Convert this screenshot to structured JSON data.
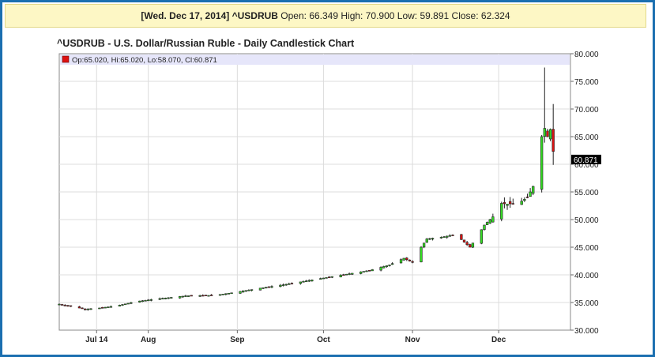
{
  "header": {
    "date": "[Wed. Dec 17, 2014]",
    "symbol": "^USDRUB",
    "open_label": "Open:",
    "open": "66.349",
    "high_label": "High:",
    "high": "70.900",
    "low_label": "Low:",
    "low": "59.891",
    "close_label": "Close:",
    "close": "62.324"
  },
  "title": "^USDRUB - U.S. Dollar/Russian Ruble - Daily Candlestick Chart",
  "legend": "Op:65.020, Hi:65.020, Lo:58.070, Cl:60.871",
  "last_price_label": "60.871",
  "colors": {
    "up": "#33dd22",
    "down": "#dd1111",
    "legend_band": "#e6e6fa",
    "frame": "#1b6fb0"
  },
  "chart_data": {
    "type": "candlestick",
    "title": "^USDRUB - U.S. Dollar/Russian Ruble - Daily Candlestick Chart",
    "ylim": [
      30,
      80
    ],
    "yticks": [
      "30.000",
      "35.000",
      "40.000",
      "45.000",
      "50.000",
      "55.000",
      "60.000",
      "65.000",
      "70.000",
      "75.000",
      "80.000"
    ],
    "xticks": [
      {
        "label": "Jul 14",
        "day": 13
      },
      {
        "label": "Aug",
        "day": 31
      },
      {
        "label": "Sep",
        "day": 62
      },
      {
        "label": "Oct",
        "day": 92
      },
      {
        "label": "Nov",
        "day": 123
      },
      {
        "label": "Dec",
        "day": 153
      }
    ],
    "x_range_days": [
      0,
      178
    ],
    "keypoints_close": [
      [
        0,
        34.7
      ],
      [
        5,
        34.2
      ],
      [
        9,
        33.8
      ],
      [
        14,
        34.0
      ],
      [
        20,
        34.4
      ],
      [
        27,
        35.2
      ],
      [
        35,
        35.7
      ],
      [
        44,
        36.2
      ],
      [
        54,
        36.3
      ],
      [
        62,
        36.9
      ],
      [
        70,
        37.6
      ],
      [
        78,
        38.2
      ],
      [
        86,
        38.9
      ],
      [
        94,
        39.6
      ],
      [
        101,
        40.2
      ],
      [
        108,
        40.8
      ],
      [
        115,
        41.8
      ],
      [
        120,
        43.0
      ],
      [
        124,
        42.0
      ],
      [
        126,
        45.0
      ],
      [
        128,
        46.5
      ],
      [
        133,
        46.8
      ],
      [
        138,
        47.3
      ],
      [
        143,
        45.0
      ],
      [
        145,
        46.5
      ],
      [
        148,
        49.0
      ],
      [
        151,
        50.5
      ],
      [
        153,
        53.0
      ],
      [
        156,
        52.8
      ],
      [
        160,
        53.0
      ],
      [
        163,
        54.0
      ],
      [
        165,
        56.0
      ],
      [
        167,
        60.0
      ],
      [
        168,
        65.0
      ],
      [
        169,
        66.5
      ],
      [
        170,
        65.0
      ],
      [
        171,
        66.3
      ],
      [
        172,
        62.3
      ],
      [
        173,
        60.871
      ]
    ],
    "last_candle": {
      "open": 65.02,
      "high": 65.02,
      "low": 58.07,
      "close": 60.871
    }
  }
}
